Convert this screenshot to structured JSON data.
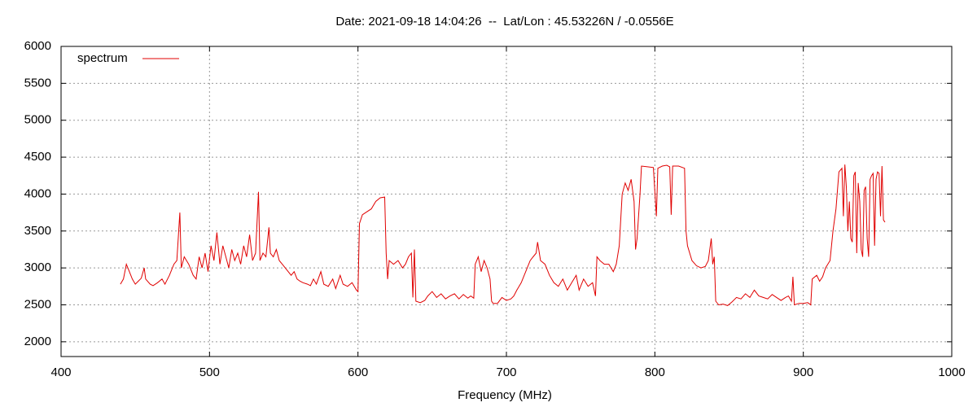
{
  "chart_data": {
    "type": "line",
    "title": "Date: 2021-09-18 14:04:26  --  Lat/Lon : 45.53226N / -0.0556E",
    "xlabel": "Frequency (MHz)",
    "xlim": [
      400,
      1000
    ],
    "xticks": [
      400,
      500,
      600,
      700,
      800,
      900,
      1000
    ],
    "ylim": [
      1800,
      6000
    ],
    "yticks": [
      2000,
      2500,
      3000,
      3500,
      4000,
      4500,
      5000,
      5500,
      6000
    ],
    "grid": true,
    "legend": "top-left",
    "x": [
      440,
      442,
      444,
      446,
      448,
      450,
      452,
      454,
      456,
      457,
      460,
      462,
      465,
      468,
      470,
      473,
      476,
      478,
      480,
      481,
      483,
      486,
      489,
      491,
      493,
      495,
      497,
      499,
      501,
      503,
      505,
      507,
      509,
      511,
      513,
      515,
      517,
      519,
      521,
      523,
      525,
      527,
      529,
      531,
      533,
      534,
      536,
      538,
      540,
      541,
      543,
      545,
      547,
      549,
      551,
      553,
      555,
      557,
      559,
      561,
      563,
      566,
      568,
      570,
      572,
      575,
      577,
      580,
      583,
      585,
      588,
      590,
      593,
      596,
      599,
      600,
      601,
      603,
      606,
      609,
      612,
      615,
      618,
      619,
      620,
      621,
      624,
      627,
      630,
      632,
      634,
      636,
      637,
      638,
      639,
      642,
      645,
      647,
      650,
      653,
      656,
      659,
      662,
      665,
      668,
      671,
      674,
      676,
      678,
      679,
      681,
      683,
      685,
      687,
      689,
      690,
      691,
      694,
      697,
      700,
      703,
      705,
      707,
      710,
      713,
      716,
      718,
      720,
      721,
      723,
      726,
      729,
      732,
      735,
      738,
      741,
      744,
      747,
      749,
      752,
      755,
      758,
      760,
      761,
      763,
      766,
      769,
      772,
      774,
      776,
      778,
      780,
      782,
      784,
      786,
      787,
      788,
      790,
      791,
      795,
      799,
      801,
      802,
      805,
      808,
      810,
      811,
      812,
      816,
      820,
      821,
      822,
      825,
      828,
      831,
      834,
      836,
      838,
      839,
      840,
      841,
      843,
      846,
      849,
      852,
      855,
      858,
      861,
      864,
      867,
      870,
      873,
      876,
      879,
      882,
      885,
      888,
      890,
      892,
      893,
      894,
      897,
      900,
      903,
      905,
      906,
      909,
      911,
      913,
      915,
      918,
      920,
      922,
      924,
      926,
      927,
      928,
      929,
      930,
      931,
      932,
      933,
      934,
      935,
      936,
      937,
      938,
      939,
      940,
      941,
      942,
      943,
      944,
      945,
      946,
      947,
      948,
      949,
      950,
      951,
      952,
      953,
      954,
      955
    ],
    "series": [
      {
        "name": "spectrum",
        "color": "#e00000",
        "values": [
          2780,
          2850,
          3050,
          2950,
          2850,
          2780,
          2820,
          2860,
          3000,
          2850,
          2780,
          2760,
          2800,
          2850,
          2780,
          2900,
          3050,
          3100,
          3750,
          3000,
          3150,
          3050,
          2900,
          2850,
          3150,
          3000,
          3200,
          2950,
          3300,
          3100,
          3480,
          3050,
          3300,
          3150,
          3000,
          3250,
          3100,
          3200,
          3050,
          3300,
          3150,
          3450,
          3100,
          3200,
          4030,
          3100,
          3200,
          3150,
          3550,
          3200,
          3150,
          3250,
          3100,
          3050,
          3000,
          2950,
          2900,
          2950,
          2850,
          2820,
          2800,
          2780,
          2760,
          2850,
          2780,
          2950,
          2780,
          2750,
          2850,
          2720,
          2900,
          2780,
          2750,
          2800,
          2700,
          2680,
          3600,
          3720,
          3760,
          3800,
          3900,
          3950,
          3960,
          3200,
          2850,
          3100,
          3050,
          3100,
          3000,
          3050,
          3150,
          3200,
          2600,
          3250,
          2550,
          2530,
          2560,
          2620,
          2680,
          2600,
          2650,
          2580,
          2620,
          2650,
          2580,
          2640,
          2590,
          2620,
          2590,
          3050,
          3150,
          2950,
          3100,
          3000,
          2850,
          2550,
          2520,
          2520,
          2600,
          2560,
          2580,
          2620,
          2700,
          2800,
          2950,
          3100,
          3150,
          3200,
          3350,
          3100,
          3050,
          2900,
          2800,
          2750,
          2850,
          2700,
          2800,
          2900,
          2700,
          2850,
          2750,
          2800,
          2620,
          3150,
          3100,
          3050,
          3050,
          2950,
          3050,
          3300,
          4000,
          4150,
          4050,
          4200,
          3900,
          3250,
          3400,
          4000,
          4380,
          4370,
          4360,
          3700,
          4350,
          4380,
          4390,
          4370,
          3720,
          4380,
          4380,
          4350,
          3500,
          3300,
          3100,
          3030,
          3000,
          3020,
          3100,
          3400,
          3050,
          3150,
          2550,
          2500,
          2510,
          2490,
          2540,
          2600,
          2580,
          2650,
          2600,
          2700,
          2620,
          2600,
          2580,
          2640,
          2600,
          2560,
          2600,
          2620,
          2550,
          2880,
          2500,
          2520,
          2520,
          2530,
          2500,
          2850,
          2900,
          2820,
          2880,
          3000,
          3100,
          3500,
          3800,
          4300,
          4350,
          3700,
          4400,
          4100,
          3500,
          3900,
          3400,
          3350,
          4250,
          4300,
          3200,
          4150,
          3900,
          3250,
          3150,
          4050,
          4100,
          3400,
          3150,
          4200,
          4250,
          4280,
          3300,
          4200,
          4300,
          4280,
          3700,
          4380,
          3650,
          3620
        ]
      }
    ]
  }
}
